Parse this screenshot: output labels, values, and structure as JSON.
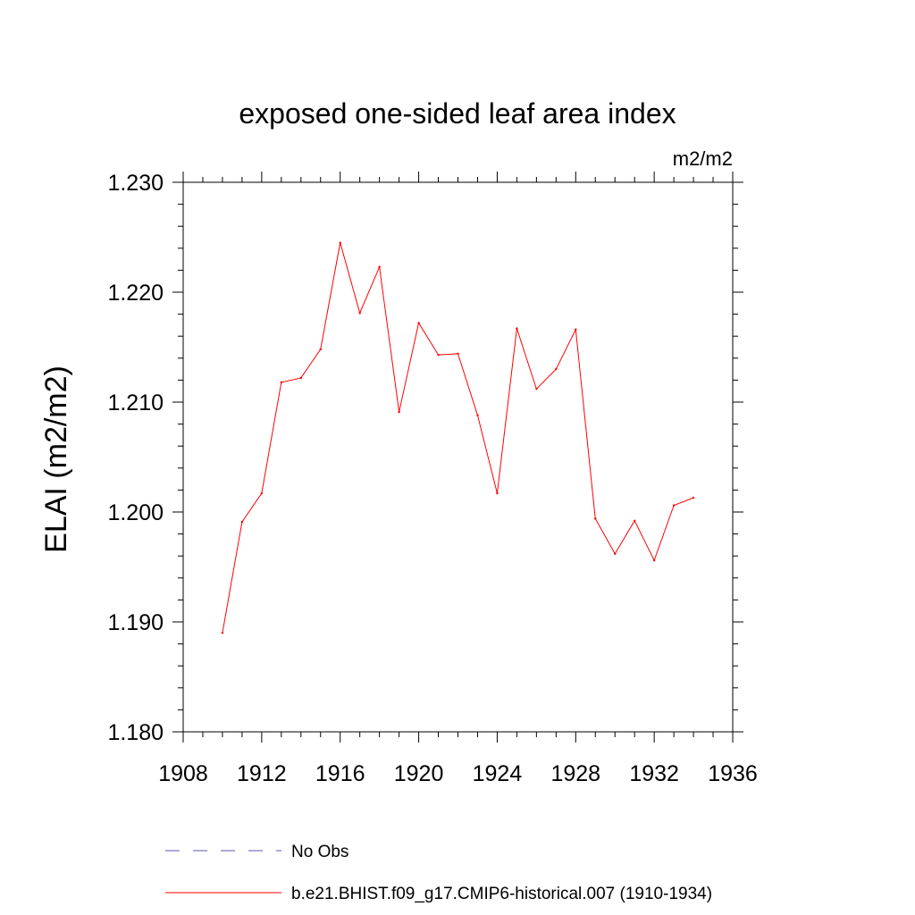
{
  "chart_data": {
    "type": "line",
    "title": "exposed one-sided leaf area index",
    "units_label": "m2/m2",
    "ylabel": "ELAI  (m2/m2)",
    "xlabel": "",
    "xlim": [
      1908,
      1936
    ],
    "ylim": [
      1.18,
      1.23
    ],
    "x_ticks": [
      1908,
      1912,
      1916,
      1920,
      1924,
      1928,
      1932,
      1936
    ],
    "x_tick_labels": [
      "1908",
      "1912",
      "1916",
      "1920",
      "1924",
      "1928",
      "1932",
      "1936"
    ],
    "y_ticks": [
      1.18,
      1.19,
      1.2,
      1.21,
      1.22,
      1.23
    ],
    "y_tick_labels": [
      "1.180",
      "1.190",
      "1.200",
      "1.210",
      "1.220",
      "1.230"
    ],
    "grid": false,
    "legend_position": "bottom",
    "series": [
      {
        "name": "No Obs",
        "color": "#5a55a8",
        "style": "dashed",
        "x": [],
        "values": []
      },
      {
        "name": "b.e21.BHIST.f09_g17.CMIP6-historical.007 (1910-1934)",
        "color": "#ff0000",
        "style": "solid",
        "x": [
          1910,
          1911,
          1912,
          1913,
          1914,
          1915,
          1916,
          1917,
          1918,
          1919,
          1920,
          1921,
          1922,
          1923,
          1924,
          1925,
          1926,
          1927,
          1928,
          1929,
          1930,
          1931,
          1932,
          1933,
          1934
        ],
        "values": [
          1.189,
          1.1991,
          1.2017,
          1.2118,
          1.2122,
          1.2148,
          1.2245,
          1.2181,
          1.2223,
          1.2091,
          1.2172,
          1.2143,
          1.2144,
          1.2088,
          1.2017,
          1.2167,
          1.2112,
          1.213,
          1.2166,
          1.1994,
          1.1962,
          1.1992,
          1.1956,
          1.2006,
          1.2013
        ]
      }
    ]
  }
}
